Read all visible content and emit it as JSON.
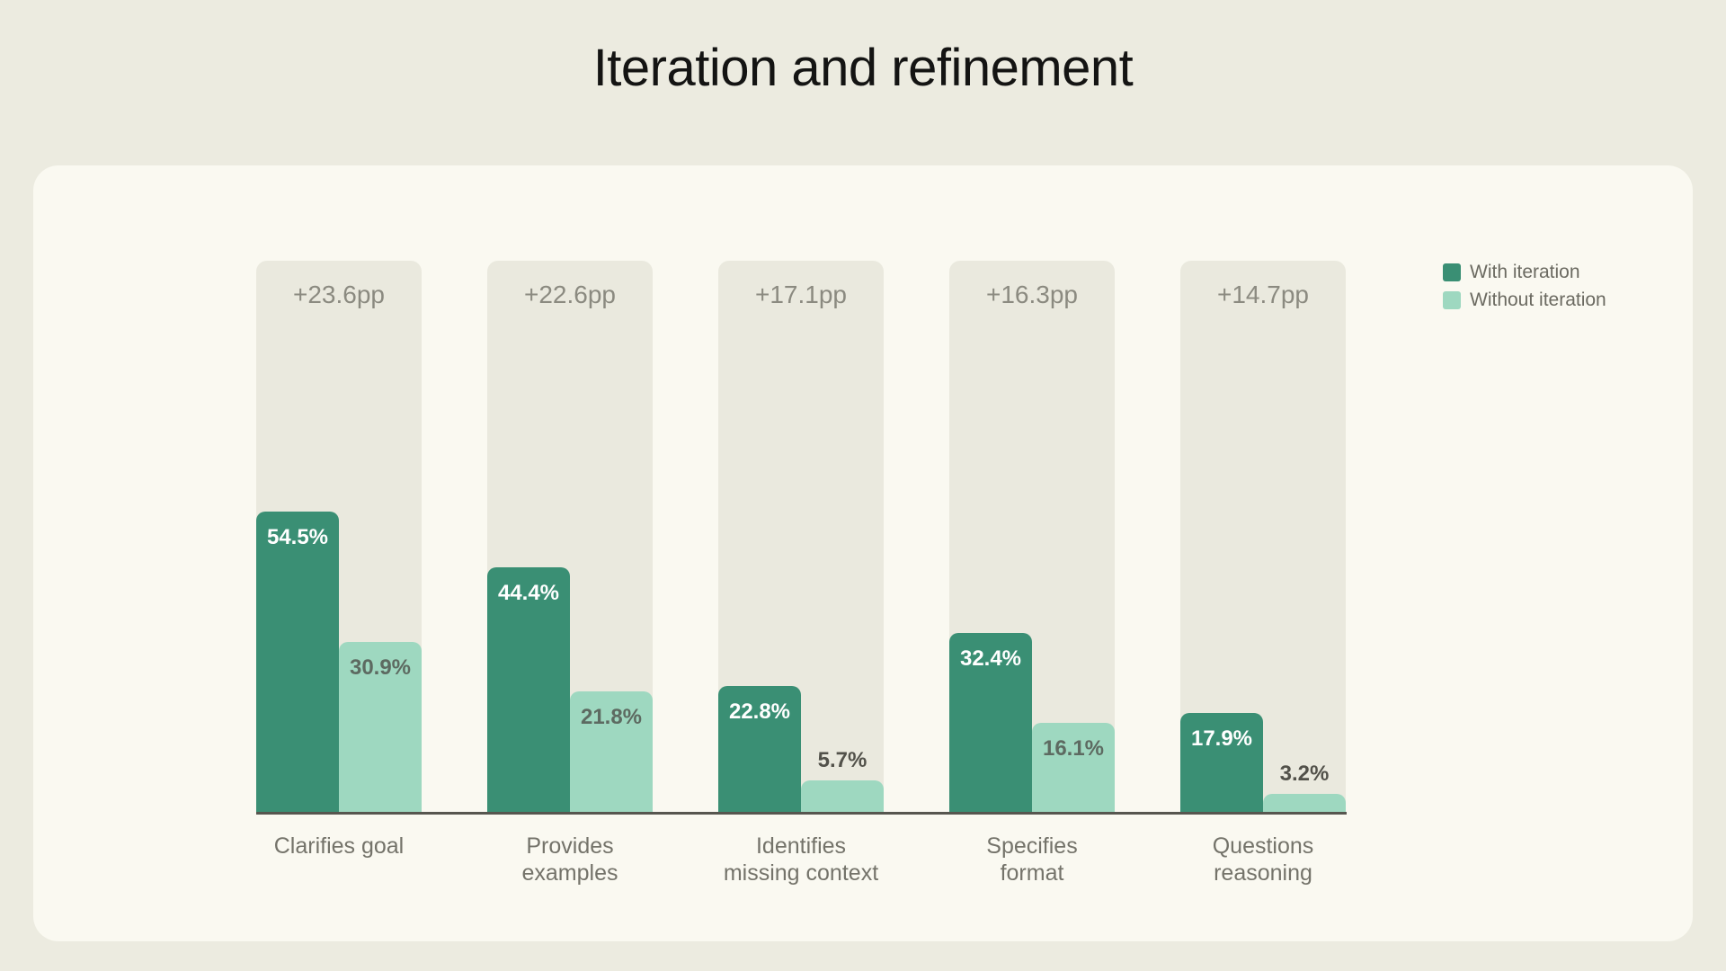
{
  "chart_data": {
    "type": "bar",
    "title": "Iteration and refinement",
    "categories": [
      "Clarifies goal",
      "Provides examples",
      "Identifies missing context",
      "Specifies format",
      "Questions reasoning"
    ],
    "category_lines": [
      [
        "Clarifies goal"
      ],
      [
        "Provides",
        "examples"
      ],
      [
        "Identifies",
        "missing context"
      ],
      [
        "Specifies",
        "format"
      ],
      [
        "Questions",
        "reasoning"
      ]
    ],
    "series": [
      {
        "name": "With iteration",
        "color": "#3a8f74",
        "values": [
          54.5,
          44.4,
          22.8,
          32.4,
          17.9
        ]
      },
      {
        "name": "Without iteration",
        "color": "#9ed8c0",
        "values": [
          30.9,
          21.8,
          5.7,
          16.1,
          3.2
        ]
      }
    ],
    "delta_labels": [
      "+23.6pp",
      "+22.6pp",
      "+17.1pp",
      "+16.3pp",
      "+14.7pp"
    ],
    "value_suffix": "%",
    "ylim": [
      0,
      100
    ],
    "grid": false,
    "legend_position": "top-right"
  },
  "colors": {
    "page_background": "#ecebe0",
    "card_background": "#faf9f1",
    "panel_background": "#eae9de",
    "axis_line": "#57564f",
    "title_text": "#141413",
    "delta_text": "#8b8a80",
    "category_text": "#74736a",
    "legend_text": "#6b6a61",
    "value_on_dark_bar": "#ffffff",
    "value_on_light_bar": "#5d6a61",
    "value_above_bar": "#52514a"
  }
}
